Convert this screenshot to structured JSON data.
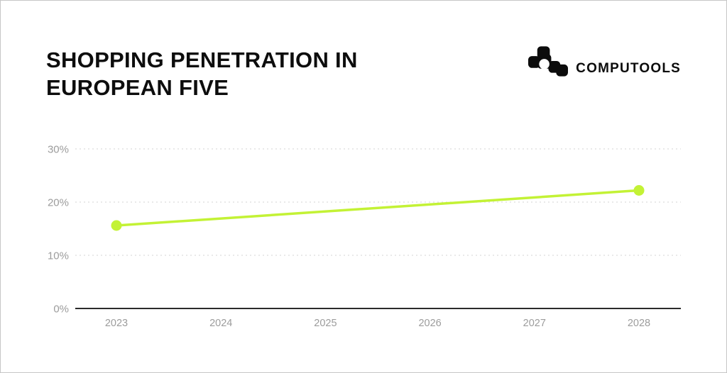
{
  "page": {
    "background_color": "#ffffff",
    "frame_border_color": "#c6c6c6"
  },
  "header": {
    "title": "SHOPPING PENETRATION IN EUROPEAN FIVE",
    "brand": {
      "name": "COMPUTOOLS",
      "logo_color": "#0c0c0c"
    }
  },
  "chart_data": {
    "type": "line",
    "title": "SHOPPING PENETRATION IN EUROPEAN FIVE",
    "x_categories": [
      "2023",
      "2024",
      "2025",
      "2026",
      "2027",
      "2028"
    ],
    "series": [
      {
        "name": "shopping-penetration",
        "points": [
          {
            "x": 2023,
            "y": 15.6
          },
          {
            "x": 2028,
            "y": 22.2
          }
        ],
        "color": "#c3f235",
        "marker": "circle",
        "marker_radius": 7.5,
        "line_width": 3.5
      }
    ],
    "ylim": [
      0,
      30
    ],
    "yticks": [
      {
        "value": 0,
        "label": "0%"
      },
      {
        "value": 10,
        "label": "10%"
      },
      {
        "value": 20,
        "label": "20%"
      },
      {
        "value": 30,
        "label": "30%"
      }
    ],
    "grid": "horizontal-dashed",
    "legend": "none",
    "grid_color": "#e2e2e2",
    "axis_line_color": "#2b2b2b",
    "tick_label_color": "#9c9c9c"
  }
}
